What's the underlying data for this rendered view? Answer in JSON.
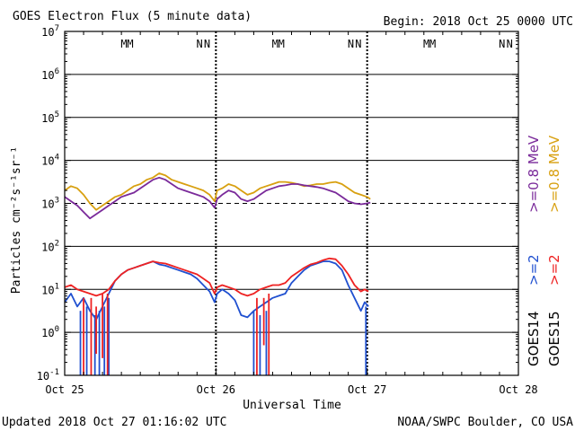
{
  "chart_data": {
    "type": "line",
    "title": "GOES Electron Flux (5 minute data)",
    "begin_label": "Begin: 2018 Oct 25 0000 UTC",
    "xlabel": "Universal Time",
    "ylabel": "Particles cm⁻²s⁻¹sr⁻¹",
    "footer_left": "Updated 2018 Oct 27 01:16:02 UTC",
    "footer_right": "NOAA/SWPC Boulder, CO USA",
    "x_unit": "hours since 2018 Oct 25 0000 UTC",
    "xlim": [
      0,
      72
    ],
    "x_ticks": [
      {
        "x": 0,
        "label": "Oct 25"
      },
      {
        "x": 24,
        "label": "Oct 26"
      },
      {
        "x": 48,
        "label": "Oct 27"
      },
      {
        "x": 72,
        "label": "Oct 28"
      }
    ],
    "ylim_log10": [
      -1,
      7
    ],
    "y_ticks": [
      {
        "exp": 7,
        "base": "10",
        "sup": "7"
      },
      {
        "exp": 6,
        "base": "10",
        "sup": "6"
      },
      {
        "exp": 5,
        "base": "10",
        "sup": "5"
      },
      {
        "exp": 4,
        "base": "10",
        "sup": "4"
      },
      {
        "exp": 3,
        "base": "10",
        "sup": "3"
      },
      {
        "exp": 2,
        "base": "10",
        "sup": "2"
      },
      {
        "exp": 1,
        "base": "10",
        "sup": "1"
      },
      {
        "exp": 0,
        "base": "10",
        "sup": "0"
      },
      {
        "exp": -1,
        "base": "10",
        "sup": "-1"
      }
    ],
    "threshold": {
      "value": 1000,
      "style": "dashed"
    },
    "day_boundaries": [
      24,
      48
    ],
    "markers": [
      {
        "x": 9.4,
        "label": "M",
        "color": "#2222cc"
      },
      {
        "x": 10.4,
        "label": "M",
        "color": "#dd2222"
      },
      {
        "x": 21.4,
        "label": "N",
        "color": "#2222cc"
      },
      {
        "x": 22.6,
        "label": "N",
        "color": "#dd2222"
      },
      {
        "x": 33.4,
        "label": "M",
        "color": "#2222cc"
      },
      {
        "x": 34.4,
        "label": "M",
        "color": "#dd2222"
      },
      {
        "x": 45.4,
        "label": "N",
        "color": "#2222cc"
      },
      {
        "x": 46.6,
        "label": "N",
        "color": "#dd2222"
      },
      {
        "x": 57.4,
        "label": "M",
        "color": "#2222cc"
      },
      {
        "x": 58.4,
        "label": "M",
        "color": "#dd2222"
      },
      {
        "x": 69.4,
        "label": "N",
        "color": "#2222cc"
      },
      {
        "x": 70.6,
        "label": "N",
        "color": "#dd2222"
      }
    ],
    "legend_groups": [
      {
        "label": "GOES14",
        "entries": [
          {
            "text": ">=2",
            "color": "#2050d0"
          },
          {
            "text": ">=0.8 MeV",
            "color": "#7a2a9a"
          }
        ]
      },
      {
        "label": "GOES15",
        "entries": [
          {
            "text": ">=2",
            "color": "#ee2222"
          },
          {
            "text": ">=0.8 MeV",
            "color": "#d8a010"
          }
        ]
      }
    ],
    "series": [
      {
        "name": "GOES15 >=0.8 MeV",
        "color": "#d8a010",
        "x": [
          0,
          1,
          2,
          3,
          4,
          5,
          6,
          7,
          8,
          9,
          10,
          11,
          12,
          13,
          14,
          15,
          16,
          17,
          18,
          19,
          20,
          21,
          22,
          23,
          23.8,
          24.2,
          25,
          26,
          27,
          28,
          29,
          30,
          31,
          32,
          33,
          34,
          35,
          36,
          37,
          38,
          39,
          40,
          41,
          42,
          43,
          44,
          45,
          46,
          47,
          48,
          48.5
        ],
        "log10": [
          3.3,
          3.4,
          3.35,
          3.2,
          3.0,
          2.85,
          2.95,
          3.05,
          3.15,
          3.2,
          3.3,
          3.4,
          3.45,
          3.55,
          3.6,
          3.7,
          3.65,
          3.55,
          3.5,
          3.45,
          3.4,
          3.35,
          3.3,
          3.2,
          3.05,
          3.3,
          3.35,
          3.45,
          3.4,
          3.3,
          3.2,
          3.25,
          3.35,
          3.4,
          3.45,
          3.5,
          3.5,
          3.48,
          3.45,
          3.4,
          3.42,
          3.45,
          3.45,
          3.48,
          3.5,
          3.45,
          3.35,
          3.25,
          3.2,
          3.15,
          3.1
        ]
      },
      {
        "name": "GOES14 >=0.8 MeV",
        "color": "#7a2a9a",
        "x": [
          0,
          1,
          2,
          3,
          4,
          5,
          6,
          7,
          8,
          9,
          10,
          11,
          12,
          13,
          14,
          15,
          16,
          17,
          18,
          19,
          20,
          21,
          22,
          23,
          23.8,
          24.2,
          25,
          26,
          27,
          28,
          29,
          30,
          31,
          32,
          33,
          34,
          35,
          36,
          37,
          38,
          39,
          40,
          41,
          42,
          43,
          44,
          45,
          46,
          47,
          48,
          48.5
        ],
        "log10": [
          3.15,
          3.05,
          2.95,
          2.8,
          2.65,
          2.75,
          2.85,
          2.95,
          3.05,
          3.15,
          3.2,
          3.25,
          3.35,
          3.45,
          3.55,
          3.6,
          3.55,
          3.45,
          3.35,
          3.3,
          3.25,
          3.2,
          3.15,
          3.05,
          2.9,
          3.1,
          3.2,
          3.3,
          3.25,
          3.1,
          3.05,
          3.1,
          3.2,
          3.3,
          3.35,
          3.4,
          3.42,
          3.45,
          3.45,
          3.42,
          3.4,
          3.38,
          3.35,
          3.3,
          3.25,
          3.15,
          3.05,
          3.0,
          2.98,
          3.0,
          3.02
        ]
      },
      {
        "name": "GOES14 >=2 MeV",
        "color": "#2050d0",
        "x": [
          0,
          1,
          2,
          3,
          4,
          5,
          6,
          7,
          8,
          9,
          10,
          11,
          12,
          13,
          14,
          15,
          16,
          17,
          18,
          19,
          20,
          21,
          22,
          23,
          23.8,
          24.2,
          25,
          26,
          27,
          28,
          29,
          30,
          31,
          32,
          33,
          34,
          35,
          36,
          37,
          38,
          39,
          40,
          41,
          42,
          43,
          44,
          45,
          46,
          47,
          47.6,
          48.2
        ],
        "log10": [
          0.7,
          0.9,
          0.6,
          0.8,
          0.5,
          0.3,
          0.6,
          0.9,
          1.2,
          1.35,
          1.45,
          1.5,
          1.55,
          1.6,
          1.65,
          1.58,
          1.55,
          1.5,
          1.45,
          1.4,
          1.35,
          1.25,
          1.1,
          0.95,
          0.7,
          0.9,
          1.0,
          0.9,
          0.75,
          0.4,
          0.35,
          0.5,
          0.6,
          0.7,
          0.8,
          0.85,
          0.9,
          1.15,
          1.3,
          1.45,
          1.55,
          1.6,
          1.65,
          1.65,
          1.6,
          1.45,
          1.1,
          0.8,
          0.5,
          0.7,
          0.6
        ]
      },
      {
        "name": "GOES15 >=2 MeV",
        "color": "#ee2222",
        "x": [
          0,
          1,
          2,
          3,
          4,
          5,
          6,
          7,
          8,
          9,
          10,
          11,
          12,
          13,
          14,
          15,
          16,
          17,
          18,
          19,
          20,
          21,
          22,
          23,
          23.8,
          24.2,
          25,
          26,
          27,
          28,
          29,
          30,
          31,
          32,
          33,
          34,
          35,
          36,
          37,
          38,
          39,
          40,
          41,
          42,
          43,
          44,
          45,
          46,
          47,
          47.6,
          48.2
        ],
        "log10": [
          1.05,
          1.1,
          1.0,
          0.95,
          0.9,
          0.85,
          0.9,
          1.0,
          1.2,
          1.35,
          1.45,
          1.5,
          1.55,
          1.6,
          1.65,
          1.62,
          1.6,
          1.55,
          1.5,
          1.45,
          1.4,
          1.35,
          1.25,
          1.15,
          0.9,
          1.05,
          1.1,
          1.05,
          1.0,
          0.9,
          0.85,
          0.9,
          1.0,
          1.05,
          1.1,
          1.1,
          1.15,
          1.3,
          1.4,
          1.5,
          1.58,
          1.62,
          1.68,
          1.72,
          1.7,
          1.55,
          1.35,
          1.1,
          0.95,
          1.0,
          0.95
        ]
      }
    ],
    "spikes": [
      {
        "x": 2.5,
        "from": 0.5,
        "to": -1,
        "color": "#2050d0"
      },
      {
        "x": 3.5,
        "from": 0.6,
        "to": -1,
        "color": "#2050d0"
      },
      {
        "x": 4.8,
        "from": 0.4,
        "to": -1,
        "color": "#2050d0"
      },
      {
        "x": 5.5,
        "from": 0.5,
        "to": -1,
        "color": "#2050d0"
      },
      {
        "x": 6.3,
        "from": 0.6,
        "to": -1,
        "color": "#2050d0"
      },
      {
        "x": 7.0,
        "from": 0.8,
        "to": -1,
        "color": "#2050d0"
      },
      {
        "x": 30.0,
        "from": 0.5,
        "to": -1,
        "color": "#2050d0"
      },
      {
        "x": 31.0,
        "from": 0.4,
        "to": -1,
        "color": "#2050d0"
      },
      {
        "x": 32.0,
        "from": 0.5,
        "to": -1,
        "color": "#2050d0"
      },
      {
        "x": 47.8,
        "from": 0.6,
        "to": -1,
        "color": "#2050d0"
      },
      {
        "x": 3.0,
        "from": 0.8,
        "to": -1,
        "color": "#ee2222"
      },
      {
        "x": 4.2,
        "from": 0.8,
        "to": -1,
        "color": "#ee2222"
      },
      {
        "x": 5.0,
        "from": 0.6,
        "to": -0.5,
        "color": "#ee2222"
      },
      {
        "x": 6.0,
        "from": 0.9,
        "to": -0.6,
        "color": "#ee2222"
      },
      {
        "x": 6.8,
        "from": 0.9,
        "to": -1,
        "color": "#ee2222"
      },
      {
        "x": 30.5,
        "from": 0.8,
        "to": -1,
        "color": "#ee2222"
      },
      {
        "x": 31.6,
        "from": 0.8,
        "to": -0.3,
        "color": "#ee2222"
      },
      {
        "x": 32.4,
        "from": 0.9,
        "to": -1,
        "color": "#ee2222"
      }
    ]
  }
}
